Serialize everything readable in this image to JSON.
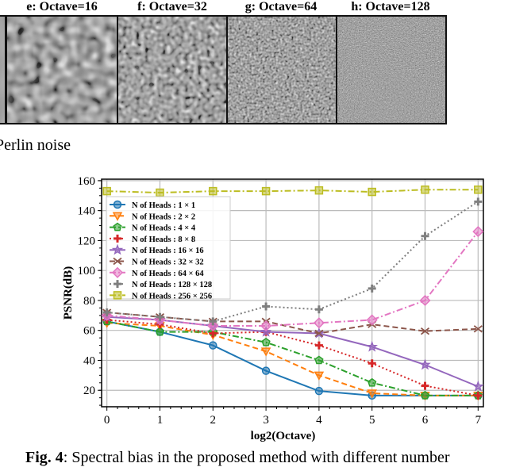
{
  "figure": {
    "panel_titles": [
      "e: Octave=16",
      "f: Octave=32",
      "g: Octave=64",
      "h: Octave=128"
    ],
    "subcaption": "Perlin noise",
    "caption_label": "Fig. 4",
    "caption_text": ": Spectral bias in the proposed method with different number"
  },
  "chart_data": {
    "type": "line",
    "xlabel": "log2(Octave)",
    "ylabel": "PSNR(dB)",
    "x": [
      0,
      1,
      2,
      3,
      4,
      5,
      6,
      7
    ],
    "xticks": [
      "0",
      "1",
      "2",
      "3",
      "4",
      "5",
      "6",
      "7"
    ],
    "yticks": [
      "20",
      "40",
      "60",
      "80",
      "100",
      "120",
      "140",
      "160"
    ],
    "xlim": [
      -0.1,
      7.1
    ],
    "ylim": [
      9,
      161
    ],
    "grid": true,
    "legend": "upper-left",
    "series": [
      {
        "name": "N of Heads : 1 × 1",
        "color": "#1f77b4",
        "dash": "",
        "marker": "circle",
        "values": [
          66,
          59,
          50,
          33,
          19.5,
          16.5,
          16.5,
          16.5
        ]
      },
      {
        "name": "N of Heads : 2 × 2",
        "color": "#ff7f0e",
        "dash": "7,4",
        "marker": "triangle",
        "values": [
          65,
          63,
          57,
          46,
          30,
          18,
          16.5,
          16.5
        ]
      },
      {
        "name": "N of Heads : 4 × 4",
        "color": "#2ca02c",
        "dash": "8,3,2,3",
        "marker": "pentagon",
        "values": [
          66,
          59,
          59,
          52,
          40,
          25,
          16.5,
          16.5
        ]
      },
      {
        "name": "N of Heads : 8 × 8",
        "color": "#d62728",
        "dash": "2,3",
        "marker": "plus",
        "values": [
          67,
          64,
          58,
          59,
          50,
          38,
          23,
          16.5
        ]
      },
      {
        "name": "N of Heads : 16 × 16",
        "color": "#9467bd",
        "dash": "",
        "marker": "star",
        "values": [
          69,
          67,
          63,
          59,
          58,
          49,
          37,
          22.5
        ]
      },
      {
        "name": "N of Heads : 32 × 32",
        "color": "#8c564b",
        "dash": "7,4",
        "marker": "x",
        "values": [
          72,
          69,
          66,
          66,
          58,
          64,
          59.5,
          61
        ]
      },
      {
        "name": "N of Heads : 64 × 64",
        "color": "#e377c2",
        "dash": "8,3,2,3",
        "marker": "diamond",
        "values": [
          70,
          67,
          63,
          63,
          65,
          67,
          80,
          126
        ]
      },
      {
        "name": "N of Heads : 128 × 128",
        "color": "#7f7f7f",
        "dash": "2,3",
        "marker": "plus",
        "values": [
          72,
          69,
          66,
          76,
          74,
          88,
          123,
          146
        ]
      },
      {
        "name": "N of Heads : 256 × 256",
        "color": "#bcbd22",
        "dash": "8,3,2,3",
        "marker": "square",
        "values": [
          153,
          152,
          153,
          153,
          153.5,
          152.5,
          154,
          154
        ]
      }
    ]
  }
}
